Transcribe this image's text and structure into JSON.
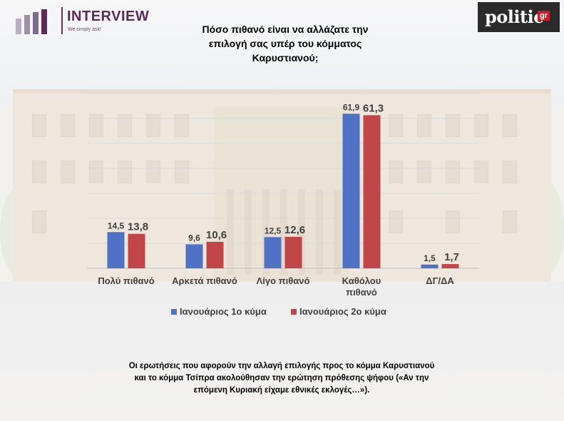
{
  "header": {
    "logo_left": {
      "name": "INTERVIEW",
      "tagline": "We simply ask!"
    },
    "logo_right": {
      "name": "politic",
      "suffix": "gr"
    }
  },
  "chart_data": {
    "type": "bar",
    "title": "Πόσο πιθανό είναι να αλλάζατε την επιλογή σας υπέρ του κόμματος Καρυστιανού;",
    "title_lines": [
      "Πόσο πιθανό είναι να αλλάζατε την",
      "επιλογή σας υπέρ του κόμματος",
      "Καρυστιανού;"
    ],
    "categories": [
      "Πολύ πιθανό",
      "Αρκετά πιθανό",
      "Λίγο πιθανό",
      "Καθόλου πιθανό",
      "ΔΓ/ΔΑ"
    ],
    "category_lines": [
      [
        "Πολύ πιθανό"
      ],
      [
        "Αρκετά πιθανό"
      ],
      [
        "Λίγο πιθανό"
      ],
      [
        "Καθόλου",
        "πιθανό"
      ],
      [
        "ΔΓ/ΔΑ"
      ]
    ],
    "series": [
      {
        "name": "Ιανουάριος 1ο κύμα",
        "values": [
          14.5,
          9.6,
          12.5,
          61.9,
          1.5
        ],
        "labels": [
          "14,5",
          "9,6",
          "12,5",
          "61,9",
          "1,5"
        ],
        "color": "#4f72c4"
      },
      {
        "name": "Ιανουάριος 2ο κύμα",
        "values": [
          13.8,
          10.6,
          12.6,
          61.3,
          1.7
        ],
        "labels": [
          "13,8",
          "10,6",
          "12,6",
          "61,3",
          "1,7"
        ],
        "color": "#c0464a"
      }
    ],
    "ylim": [
      0,
      70
    ],
    "grid": true,
    "legend_position": "bottom"
  },
  "footnote": {
    "lines": [
      "Οι ερωτήσεις που αφορούν την αλλαγή επιλογής προς το κόμμα Καρυστιανού",
      "και το κόμμα Τσίπρα ακολούθησαν την ερώτηση πρόθεσης ψήφου («Αν την",
      "επόμενη Κυριακή είχαμε εθνικές εκλογές…»)."
    ]
  }
}
